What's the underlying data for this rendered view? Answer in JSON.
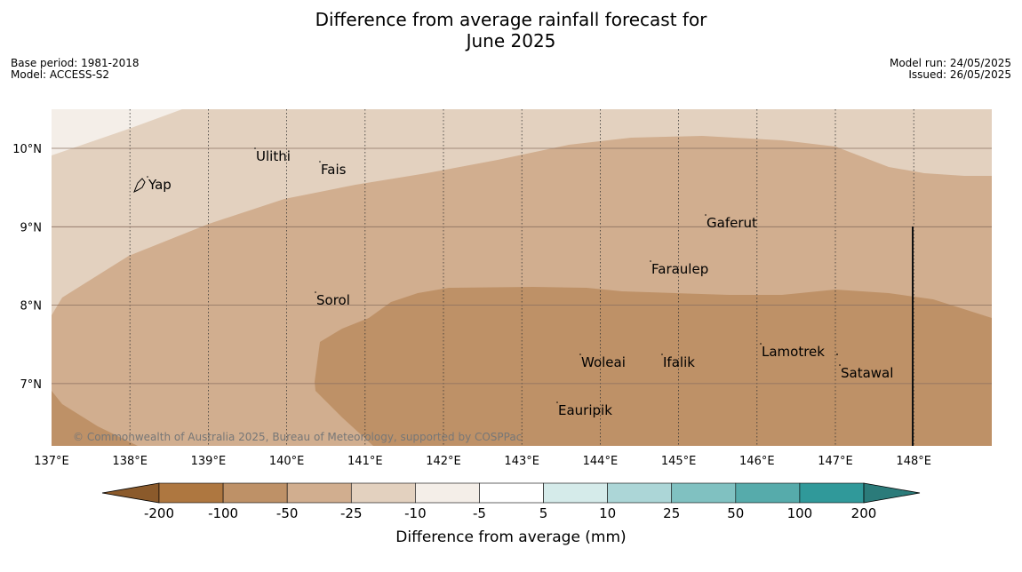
{
  "title": {
    "line1": "Difference from average rainfall forecast for",
    "line2": "June 2025"
  },
  "meta_left": {
    "base_period": "Base period: 1981-2018",
    "model": "Model: ACCESS-S2"
  },
  "meta_right": {
    "model_run": "Model run: 24/05/2025",
    "issued": "Issued: 26/05/2025"
  },
  "copyright": "© Commonwealth of Australia 2025, Bureau of Meteorology, supported by COSPPac",
  "map": {
    "lon_ticks": [
      "137°E",
      "138°E",
      "139°E",
      "140°E",
      "141°E",
      "142°E",
      "143°E",
      "144°E",
      "145°E",
      "146°E",
      "147°E",
      "148°E"
    ],
    "lat_ticks": [
      "10°N",
      "9°N",
      "8°N",
      "7°N"
    ],
    "places": [
      {
        "name": "Ulithi",
        "id": "ulithi"
      },
      {
        "name": "Fais",
        "id": "fais"
      },
      {
        "name": "Yap",
        "id": "yap"
      },
      {
        "name": "Gaferut",
        "id": "gaferut"
      },
      {
        "name": "Faraulep",
        "id": "faraulep"
      },
      {
        "name": "Sorol",
        "id": "sorol"
      },
      {
        "name": "Lamotrek",
        "id": "lamotrek"
      },
      {
        "name": "Woleai",
        "id": "woleai"
      },
      {
        "name": "Ifalik",
        "id": "ifalik"
      },
      {
        "name": "Satawal",
        "id": "satawal"
      },
      {
        "name": "Eauripik",
        "id": "eauripik"
      }
    ]
  },
  "colorbar": {
    "ticks": [
      "-200",
      "-100",
      "-50",
      "-25",
      "-10",
      "-5",
      "5",
      "10",
      "25",
      "50",
      "100",
      "200"
    ],
    "colors": [
      "#8b5a2b",
      "#ae7740",
      "#be9167",
      "#d1ae8f",
      "#e3d1bf",
      "#f4eee8",
      "#ffffff",
      "#d5ebea",
      "#acd6d7",
      "#80c1c1",
      "#56abab",
      "#30999a",
      "#2b7b7a"
    ],
    "label": "Difference from average (mm)"
  },
  "fill_colors": {
    "lightest": "#f4eee8",
    "light": "#e3d1bf",
    "mid": "#d1ae8f",
    "dark": "#be9167"
  }
}
